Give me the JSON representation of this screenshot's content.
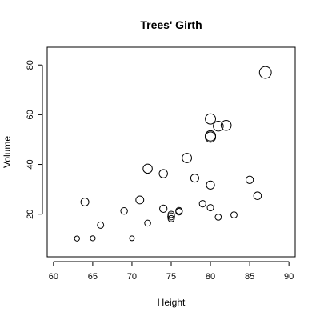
{
  "chart_data": {
    "type": "scatter",
    "title": "Trees' Girth",
    "xlabel": "Height",
    "ylabel": "Volume",
    "xlim": [
      59.2,
      90.8
    ],
    "ylim": [
      2.85,
      87.15
    ],
    "xticks": [
      60,
      65,
      70,
      75,
      80,
      85,
      90
    ],
    "yticks": [
      20,
      40,
      60,
      80
    ],
    "grid": false,
    "legend": "none",
    "size_variable": "Girth",
    "points": [
      {
        "x": 70,
        "y": 10.3,
        "size": 8.3
      },
      {
        "x": 65,
        "y": 10.3,
        "size": 8.6
      },
      {
        "x": 63,
        "y": 10.2,
        "size": 8.8
      },
      {
        "x": 72,
        "y": 16.4,
        "size": 10.5
      },
      {
        "x": 81,
        "y": 18.8,
        "size": 10.7
      },
      {
        "x": 83,
        "y": 19.7,
        "size": 10.8
      },
      {
        "x": 66,
        "y": 15.6,
        "size": 11.0
      },
      {
        "x": 75,
        "y": 18.2,
        "size": 11.0
      },
      {
        "x": 80,
        "y": 22.6,
        "size": 11.1
      },
      {
        "x": 75,
        "y": 19.9,
        "size": 11.2
      },
      {
        "x": 79,
        "y": 24.2,
        "size": 11.3
      },
      {
        "x": 76,
        "y": 21.0,
        "size": 11.4
      },
      {
        "x": 76,
        "y": 21.4,
        "size": 11.4
      },
      {
        "x": 69,
        "y": 21.3,
        "size": 11.7
      },
      {
        "x": 75,
        "y": 19.1,
        "size": 12.0
      },
      {
        "x": 74,
        "y": 22.2,
        "size": 12.9
      },
      {
        "x": 85,
        "y": 33.8,
        "size": 12.9
      },
      {
        "x": 86,
        "y": 27.4,
        "size": 13.3
      },
      {
        "x": 71,
        "y": 25.7,
        "size": 13.7
      },
      {
        "x": 64,
        "y": 24.9,
        "size": 13.8
      },
      {
        "x": 78,
        "y": 34.5,
        "size": 14.0
      },
      {
        "x": 80,
        "y": 31.7,
        "size": 14.2
      },
      {
        "x": 74,
        "y": 36.3,
        "size": 14.5
      },
      {
        "x": 72,
        "y": 38.3,
        "size": 16.0
      },
      {
        "x": 77,
        "y": 42.6,
        "size": 16.3
      },
      {
        "x": 81,
        "y": 55.4,
        "size": 17.3
      },
      {
        "x": 82,
        "y": 55.7,
        "size": 17.5
      },
      {
        "x": 80,
        "y": 58.3,
        "size": 17.9
      },
      {
        "x": 80,
        "y": 51.5,
        "size": 18.0
      },
      {
        "x": 80,
        "y": 51.0,
        "size": 18.0
      },
      {
        "x": 87,
        "y": 77.0,
        "size": 20.6
      }
    ]
  }
}
